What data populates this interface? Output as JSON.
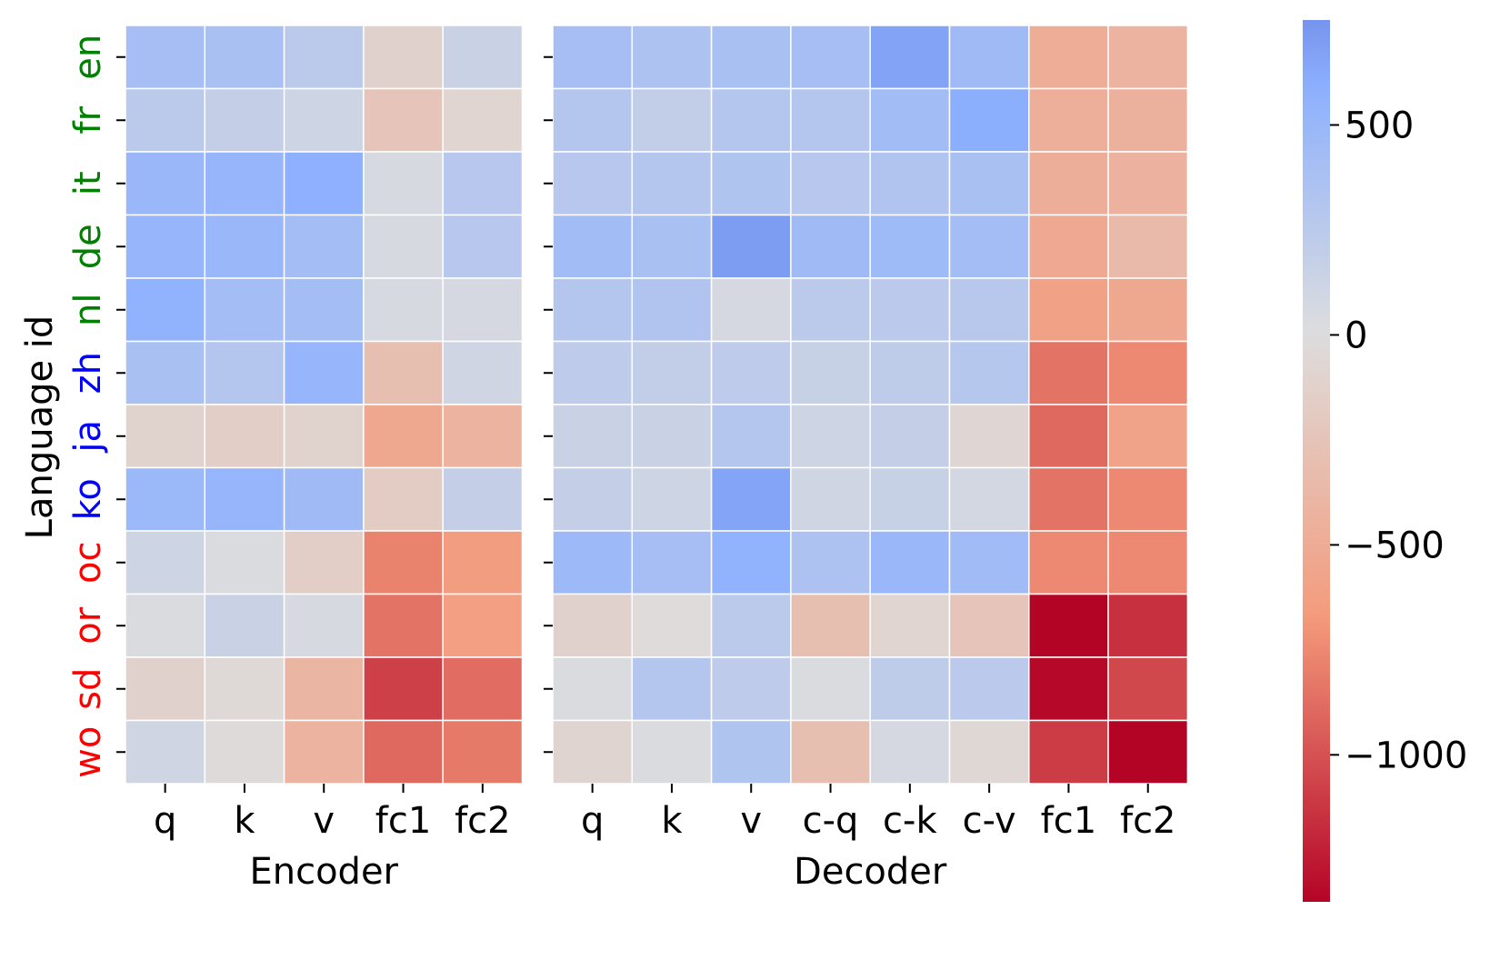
{
  "chart_data": {
    "type": "heatmap",
    "ylabel": "Language id",
    "languages": [
      {
        "code": "en",
        "group": "high"
      },
      {
        "code": "fr",
        "group": "high"
      },
      {
        "code": "it",
        "group": "high"
      },
      {
        "code": "de",
        "group": "high"
      },
      {
        "code": "nl",
        "group": "high"
      },
      {
        "code": "zh",
        "group": "mid"
      },
      {
        "code": "ja",
        "group": "mid"
      },
      {
        "code": "ko",
        "group": "mid"
      },
      {
        "code": "oc",
        "group": "low"
      },
      {
        "code": "or",
        "group": "low"
      },
      {
        "code": "sd",
        "group": "low"
      },
      {
        "code": "wo",
        "group": "low"
      }
    ],
    "group_colors": {
      "high": "#008000",
      "mid": "#0000ff",
      "low": "#ff0000"
    },
    "colormap": "coolwarm_r",
    "vmin": -1350,
    "vmax": 750,
    "colorbar_ticks": [
      500,
      0,
      -500,
      -1000
    ],
    "colorbar_tick_labels": [
      "500",
      "0",
      "−500",
      "−1000"
    ],
    "panels": [
      {
        "name": "encoder",
        "xlabel": "Encoder",
        "columns": [
          "q",
          "k",
          "v",
          "fc1",
          "fc2"
        ],
        "values": [
          [
            400,
            380,
            250,
            -120,
            150
          ],
          [
            250,
            180,
            120,
            -250,
            -80
          ],
          [
            500,
            520,
            580,
            50,
            280
          ],
          [
            520,
            500,
            420,
            50,
            280
          ],
          [
            560,
            420,
            420,
            50,
            60
          ],
          [
            380,
            300,
            520,
            -300,
            100
          ],
          [
            -100,
            -150,
            -100,
            -530,
            -420
          ],
          [
            480,
            520,
            450,
            -170,
            180
          ],
          [
            120,
            30,
            -150,
            -780,
            -640
          ],
          [
            30,
            150,
            50,
            -850,
            -620
          ],
          [
            -120,
            -40,
            -400,
            -1080,
            -880
          ],
          [
            100,
            -30,
            -420,
            -900,
            -820
          ]
        ]
      },
      {
        "name": "decoder",
        "xlabel": "Decoder",
        "columns": [
          "q",
          "k",
          "v",
          "c-q",
          "c-k",
          "c-v",
          "fc1",
          "fc2"
        ],
        "values": [
          [
            400,
            350,
            380,
            400,
            660,
            450,
            -480,
            -420
          ],
          [
            300,
            200,
            300,
            300,
            430,
            600,
            -460,
            -440
          ],
          [
            280,
            300,
            330,
            280,
            320,
            380,
            -470,
            -430
          ],
          [
            430,
            380,
            700,
            450,
            460,
            420,
            -520,
            -360
          ],
          [
            300,
            320,
            60,
            250,
            260,
            270,
            -600,
            -530
          ],
          [
            230,
            200,
            230,
            160,
            220,
            290,
            -850,
            -750
          ],
          [
            150,
            150,
            300,
            120,
            180,
            -70,
            -900,
            -580
          ],
          [
            180,
            120,
            650,
            100,
            160,
            80,
            -850,
            -750
          ],
          [
            470,
            400,
            560,
            350,
            500,
            440,
            -750,
            -750
          ],
          [
            -120,
            -20,
            250,
            -300,
            -80,
            -250,
            -1350,
            -1150
          ],
          [
            30,
            300,
            230,
            20,
            220,
            260,
            -1330,
            -1050
          ],
          [
            -90,
            30,
            330,
            -300,
            60,
            -60,
            -1100,
            -1350
          ]
        ]
      }
    ]
  }
}
